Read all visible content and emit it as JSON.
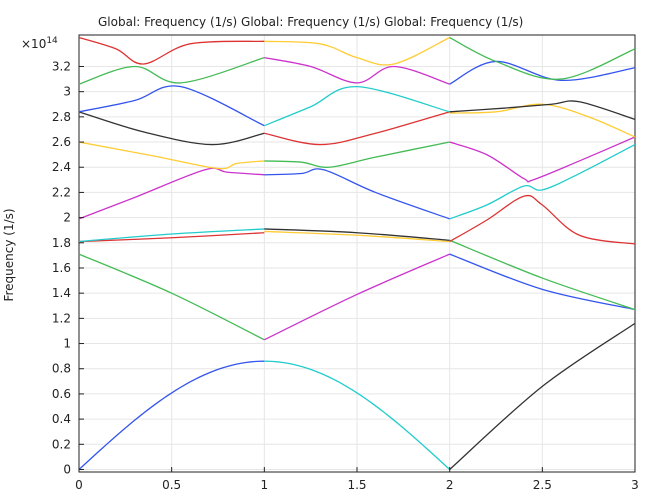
{
  "chart_data": {
    "type": "line",
    "title": "Global: Frequency (1/s)  Global: Frequency (1/s)  Global: Frequency (1/s)",
    "xlabel": "",
    "ylabel": "Frequency (1/s)",
    "y_multiplier": "×10",
    "y_multiplier_exponent": "14",
    "xlim": [
      0,
      3
    ],
    "ylim": [
      -0.02,
      3.45
    ],
    "grid": true,
    "legend": "none",
    "x_ticks": [
      {
        "value": 0,
        "label": "0"
      },
      {
        "value": 0.5,
        "label": "0.5"
      },
      {
        "value": 1,
        "label": "1"
      },
      {
        "value": 1.5,
        "label": "1.5"
      },
      {
        "value": 2,
        "label": "2"
      },
      {
        "value": 2.5,
        "label": "2.5"
      },
      {
        "value": 3,
        "label": "3"
      }
    ],
    "y_ticks": [
      {
        "value": 0,
        "label": "0"
      },
      {
        "value": 0.2,
        "label": "0.2"
      },
      {
        "value": 0.4,
        "label": "0.4"
      },
      {
        "value": 0.6,
        "label": "0.6"
      },
      {
        "value": 0.8,
        "label": "0.8"
      },
      {
        "value": 1.0,
        "label": "1"
      },
      {
        "value": 1.2,
        "label": "1.2"
      },
      {
        "value": 1.4,
        "label": "1.4"
      },
      {
        "value": 1.6,
        "label": "1.6"
      },
      {
        "value": 1.8,
        "label": "1.8"
      },
      {
        "value": 2.0,
        "label": "2"
      },
      {
        "value": 2.2,
        "label": "2.2"
      },
      {
        "value": 2.4,
        "label": "2.4"
      },
      {
        "value": 2.6,
        "label": "2.6"
      },
      {
        "value": 2.8,
        "label": "2.8"
      },
      {
        "value": 3.0,
        "label": "3"
      },
      {
        "value": 3.2,
        "label": "3.2"
      }
    ],
    "series": [
      {
        "color": "#3355ee",
        "x": [
          0,
          1
        ],
        "y": [
          0,
          0.86
        ],
        "shape": "sin"
      },
      {
        "color": "#22cccc",
        "x": [
          1,
          2
        ],
        "y": [
          0.86,
          0
        ],
        "shape": "sin"
      },
      {
        "color": "#333333",
        "x": [
          2,
          2.5,
          3
        ],
        "y": [
          0,
          0.66,
          1.16
        ],
        "shape": "smooth"
      },
      {
        "color": "#44bb55",
        "x": [
          0,
          0.5,
          1
        ],
        "y": [
          1.71,
          1.4,
          1.03
        ],
        "shape": "smooth"
      },
      {
        "color": "#cc33cc",
        "x": [
          1,
          1.5,
          2
        ],
        "y": [
          1.03,
          1.39,
          1.71
        ],
        "shape": "smooth"
      },
      {
        "color": "#3355ee",
        "x": [
          2,
          2.5,
          3
        ],
        "y": [
          1.71,
          1.43,
          1.27
        ],
        "shape": "smooth"
      },
      {
        "color": "#44bb55",
        "x": [
          2,
          2.5,
          3
        ],
        "y": [
          1.82,
          1.52,
          1.27
        ],
        "shape": "smooth"
      },
      {
        "color": "#dd3333",
        "x": [
          0,
          0.5,
          1
        ],
        "y": [
          1.81,
          1.84,
          1.88
        ],
        "shape": "smooth"
      },
      {
        "color": "#22cccc",
        "x": [
          0,
          0.5,
          1
        ],
        "y": [
          1.81,
          1.87,
          1.91
        ],
        "shape": "smooth"
      },
      {
        "color": "#ffcc33",
        "x": [
          1,
          1.5,
          2
        ],
        "y": [
          1.89,
          1.86,
          1.81
        ],
        "shape": "smooth"
      },
      {
        "color": "#333333",
        "x": [
          1,
          1.5,
          2
        ],
        "y": [
          1.91,
          1.88,
          1.82
        ],
        "shape": "smooth"
      },
      {
        "color": "#dd3333",
        "x": [
          2,
          2.2,
          2.4,
          2.5,
          2.7,
          3
        ],
        "y": [
          1.81,
          1.98,
          2.17,
          2.1,
          1.86,
          1.79
        ],
        "shape": "smooth"
      },
      {
        "color": "#cc33cc",
        "x": [
          0,
          0.3,
          0.68,
          0.8,
          1
        ],
        "y": [
          1.99,
          2.16,
          2.38,
          2.36,
          2.34
        ],
        "shape": "smooth"
      },
      {
        "color": "#3355ee",
        "x": [
          1,
          1.2,
          1.32,
          1.6,
          2
        ],
        "y": [
          2.34,
          2.35,
          2.38,
          2.2,
          1.99
        ],
        "shape": "smooth"
      },
      {
        "color": "#22cccc",
        "x": [
          2,
          2.2,
          2.4,
          2.5,
          2.7,
          3
        ],
        "y": [
          1.99,
          2.1,
          2.25,
          2.22,
          2.35,
          2.58
        ],
        "shape": "smooth"
      },
      {
        "color": "#ffcc33",
        "x": [
          0,
          0.4,
          0.75,
          0.85,
          1
        ],
        "y": [
          2.6,
          2.49,
          2.39,
          2.43,
          2.45
        ],
        "shape": "smooth"
      },
      {
        "color": "#44bb55",
        "x": [
          1,
          1.2,
          1.35,
          1.6,
          2
        ],
        "y": [
          2.45,
          2.44,
          2.4,
          2.48,
          2.6
        ],
        "shape": "smooth"
      },
      {
        "color": "#cc33cc",
        "x": [
          2,
          2.2,
          2.4,
          2.45,
          2.7,
          3
        ],
        "y": [
          2.6,
          2.5,
          2.31,
          2.3,
          2.45,
          2.64
        ],
        "shape": "smooth"
      },
      {
        "color": "#333333",
        "x": [
          0,
          0.35,
          0.72,
          1
        ],
        "y": [
          2.84,
          2.68,
          2.58,
          2.67
        ],
        "shape": "smooth"
      },
      {
        "color": "#dd3333",
        "x": [
          1,
          1.3,
          1.6,
          2
        ],
        "y": [
          2.67,
          2.58,
          2.67,
          2.84
        ],
        "shape": "smooth"
      },
      {
        "color": "#ffcc33",
        "x": [
          2,
          2.25,
          2.5,
          2.75,
          3
        ],
        "y": [
          2.83,
          2.84,
          2.9,
          2.8,
          2.64
        ],
        "shape": "smooth"
      },
      {
        "color": "#3355ee",
        "x": [
          0,
          0.3,
          0.55,
          1
        ],
        "y": [
          2.84,
          2.93,
          3.04,
          2.73
        ],
        "shape": "smooth"
      },
      {
        "color": "#22cccc",
        "x": [
          1,
          1.25,
          1.5,
          2
        ],
        "y": [
          2.73,
          2.88,
          3.04,
          2.84
        ],
        "shape": "smooth"
      },
      {
        "color": "#333333",
        "x": [
          2,
          2.3,
          2.55,
          2.7,
          3
        ],
        "y": [
          2.84,
          2.87,
          2.9,
          2.92,
          2.78
        ],
        "shape": "smooth"
      },
      {
        "color": "#44bb55",
        "x": [
          0,
          0.3,
          0.55,
          1
        ],
        "y": [
          3.06,
          3.2,
          3.07,
          3.27
        ],
        "shape": "smooth"
      },
      {
        "color": "#cc33cc",
        "x": [
          1,
          1.25,
          1.5,
          1.7,
          2
        ],
        "y": [
          3.27,
          3.2,
          3.07,
          3.2,
          3.06
        ],
        "shape": "smooth"
      },
      {
        "color": "#3355ee",
        "x": [
          2,
          2.25,
          2.6,
          3
        ],
        "y": [
          3.06,
          3.24,
          3.09,
          3.19
        ],
        "shape": "smooth"
      },
      {
        "color": "#dd3333",
        "x": [
          0,
          0.2,
          0.35,
          0.6,
          1
        ],
        "y": [
          3.43,
          3.34,
          3.22,
          3.38,
          3.4
        ],
        "shape": "smooth"
      },
      {
        "color": "#ffcc33",
        "x": [
          1,
          1.3,
          1.5,
          1.7,
          2
        ],
        "y": [
          3.4,
          3.38,
          3.27,
          3.22,
          3.43
        ],
        "shape": "smooth"
      },
      {
        "color": "#44bb55",
        "x": [
          2,
          2.25,
          2.6,
          3
        ],
        "y": [
          3.43,
          3.24,
          3.1,
          3.34
        ],
        "shape": "smooth"
      }
    ]
  }
}
